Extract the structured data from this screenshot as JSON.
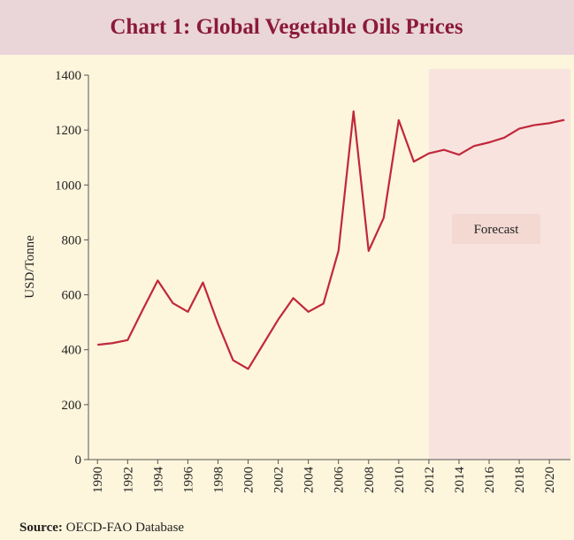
{
  "chart_data": {
    "type": "line",
    "title": "Chart 1: Global Vegetable Oils Prices",
    "y_label": "USD/Tonne",
    "source_label": "Source:",
    "source": "OECD-FAO Database",
    "annotation": {
      "text": "Forecast",
      "start": 2012
    },
    "x": [
      1990,
      1991,
      1992,
      1993,
      1994,
      1995,
      1996,
      1997,
      1998,
      1999,
      2000,
      2001,
      2002,
      2003,
      2004,
      2005,
      2006,
      2007,
      2008,
      2009,
      2010,
      2011,
      2012,
      2013,
      2014,
      2015,
      2016,
      2017,
      2018,
      2019,
      2020,
      2021
    ],
    "values": [
      418,
      424,
      435,
      545,
      652,
      570,
      538,
      645,
      495,
      362,
      330,
      420,
      510,
      588,
      538,
      568,
      760,
      1268,
      760,
      880,
      1236,
      1085,
      1115,
      1128,
      1110,
      1142,
      1155,
      1172,
      1205,
      1218,
      1225,
      1237
    ],
    "color": "#c0283a",
    "xlim": [
      1989.4,
      2021.4
    ],
    "xticks": [
      1990,
      1992,
      1994,
      1996,
      1998,
      2000,
      2002,
      2004,
      2006,
      2008,
      2010,
      2012,
      2014,
      2016,
      2018,
      2020
    ],
    "ylim": [
      0,
      1400
    ],
    "yticks": [
      0,
      200,
      400,
      600,
      800,
      1000,
      1200,
      1400
    ]
  }
}
